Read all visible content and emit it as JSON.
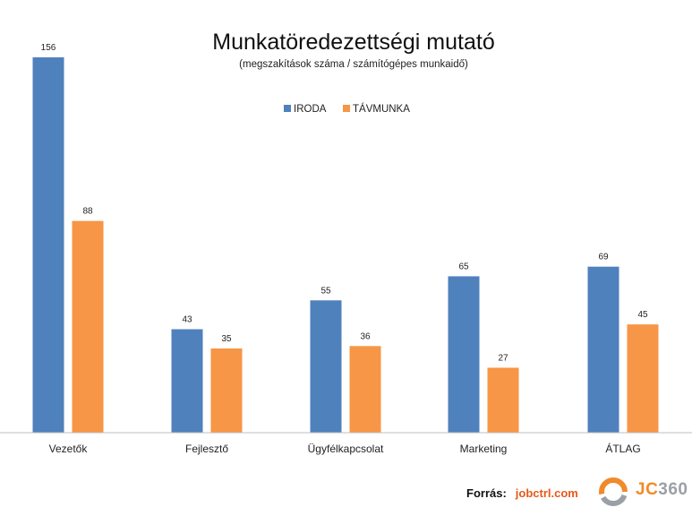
{
  "chart_data": {
    "type": "bar",
    "title": "Munkatöredezettségi mutató",
    "subtitle": "(megszakítások száma / számítógépes munkaidő)",
    "categories": [
      "Vezetők",
      "Fejlesztő",
      "Ügyfélkapcsolat",
      "Marketing",
      "ÁTLAG"
    ],
    "series": [
      {
        "name": "IRODA",
        "color": "#4f81bd",
        "values": [
          156,
          43,
          55,
          65,
          69
        ]
      },
      {
        "name": "TÁVMUNKA",
        "color": "#f79646",
        "values": [
          88,
          35,
          36,
          27,
          45
        ]
      }
    ],
    "ylim": [
      0,
      160
    ],
    "legend_position": "top-center",
    "grid": false,
    "data_labels": true
  },
  "footer": {
    "source_label": "Forrás:",
    "source_value": "jobctrl.com"
  },
  "logo": {
    "text_jc": "JC",
    "text_num": "360",
    "colors": {
      "ring_orange": "#f18a2a",
      "ring_grey": "#9aa0a6"
    }
  }
}
